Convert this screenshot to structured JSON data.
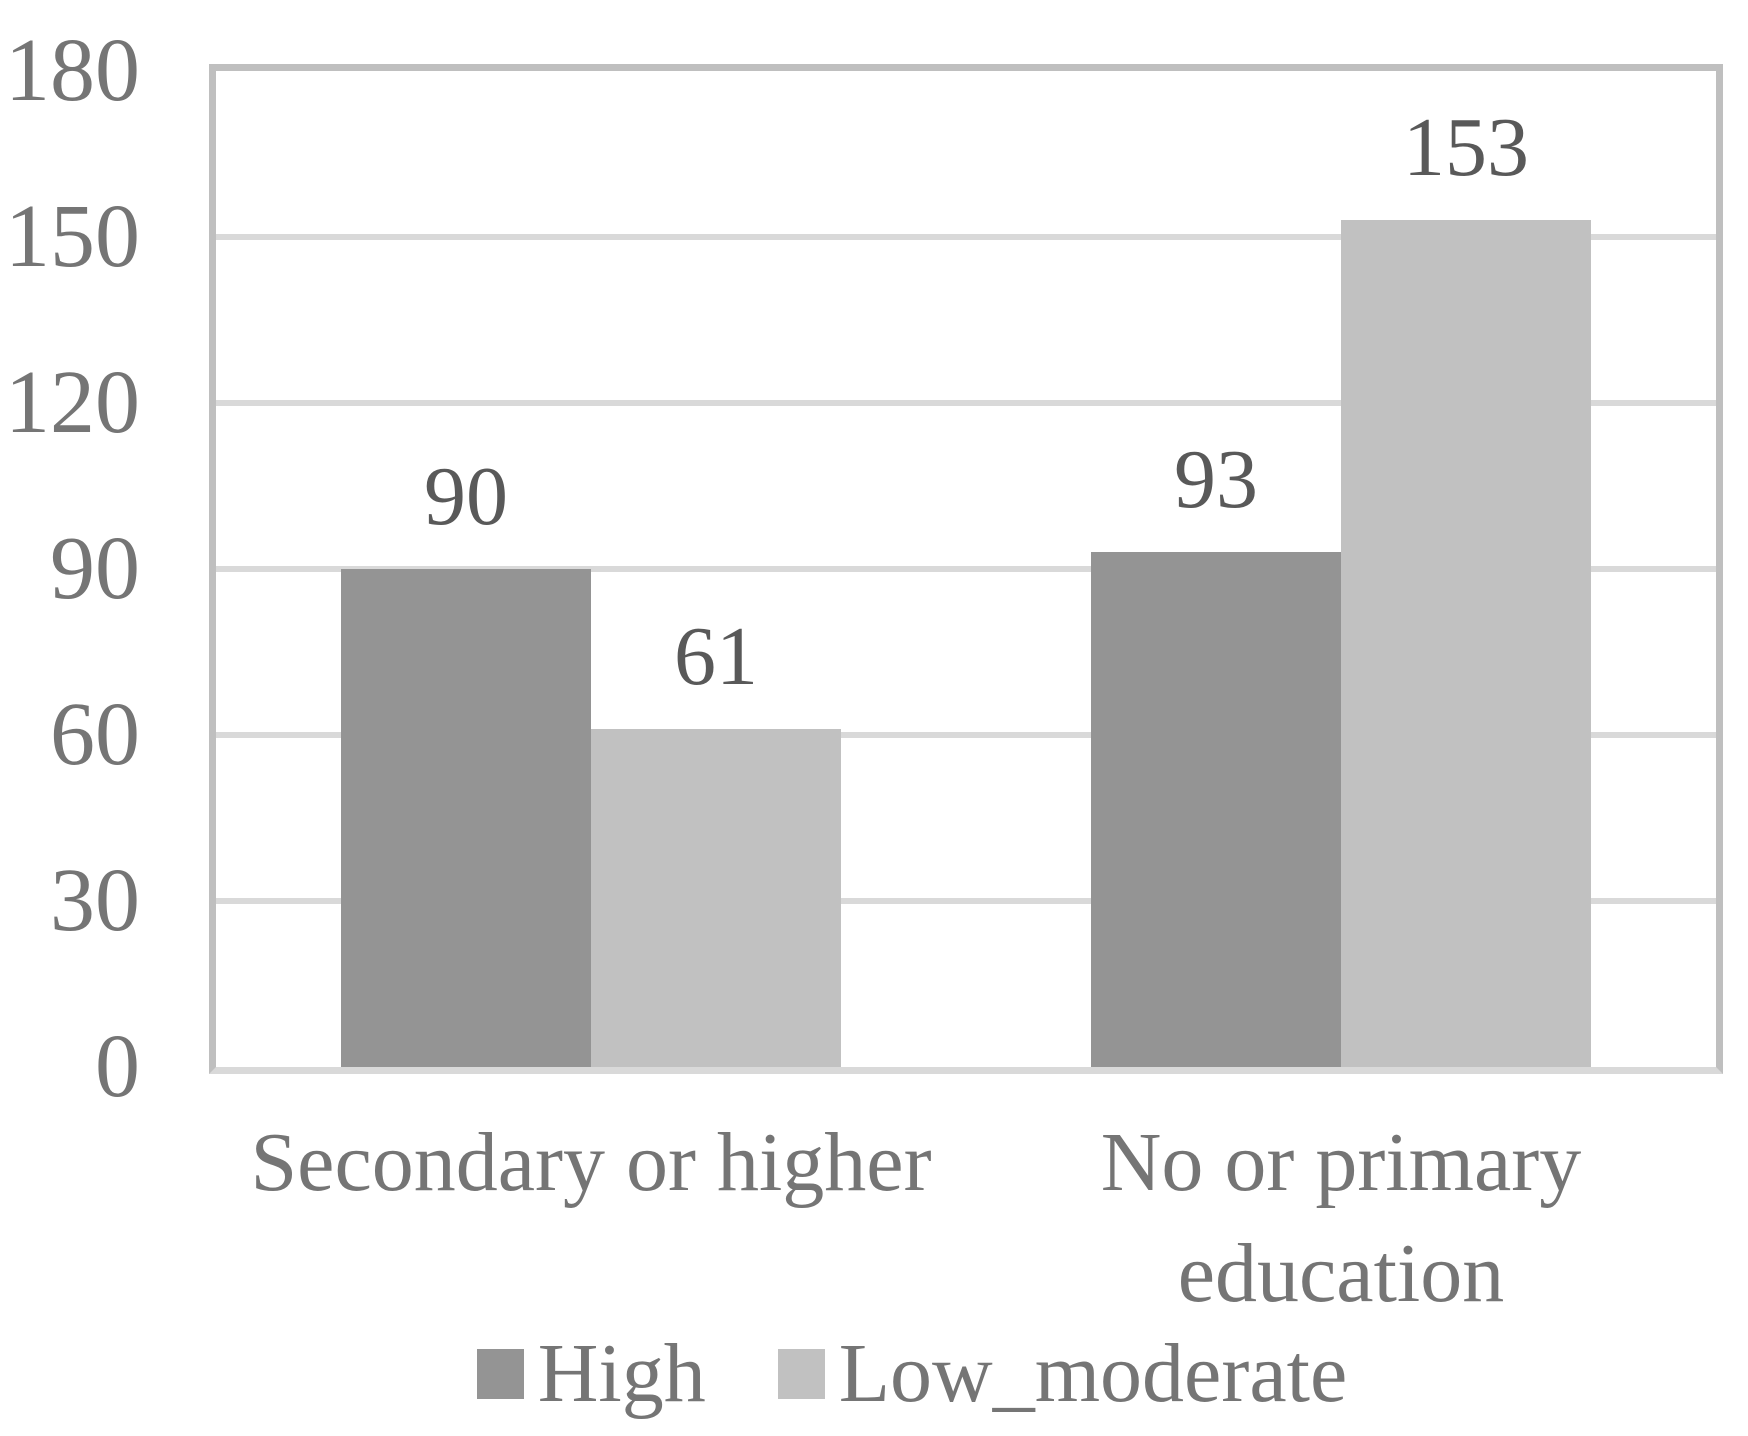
{
  "chart_data": {
    "type": "bar",
    "title": "",
    "xlabel": "",
    "ylabel": "",
    "categories": [
      "Secondary or higher",
      "No or primary education"
    ],
    "category_display": [
      "Secondary or higher",
      "No or primary\neducation"
    ],
    "series": [
      {
        "name": "High",
        "values": [
          90,
          93
        ],
        "color": "#949494"
      },
      {
        "name": "Low_moderate",
        "values": [
          61,
          153
        ],
        "color": "#c1c1c1"
      }
    ],
    "data_labels": [
      [
        "90",
        "93"
      ],
      [
        "61",
        "153"
      ]
    ],
    "ylim": [
      0,
      180
    ],
    "yticks": [
      0,
      30,
      60,
      90,
      120,
      150,
      180
    ],
    "grid": true,
    "legend_position": "bottom",
    "gap_width_percent": 100
  },
  "colors": {
    "series_high": "#949494",
    "series_low_moderate": "#c1c1c1",
    "gridline": "#d9d9d9",
    "plot_border": "#bfbfbf",
    "axis_text": "#757575",
    "data_label_text": "#595959",
    "background": "#ffffff"
  }
}
